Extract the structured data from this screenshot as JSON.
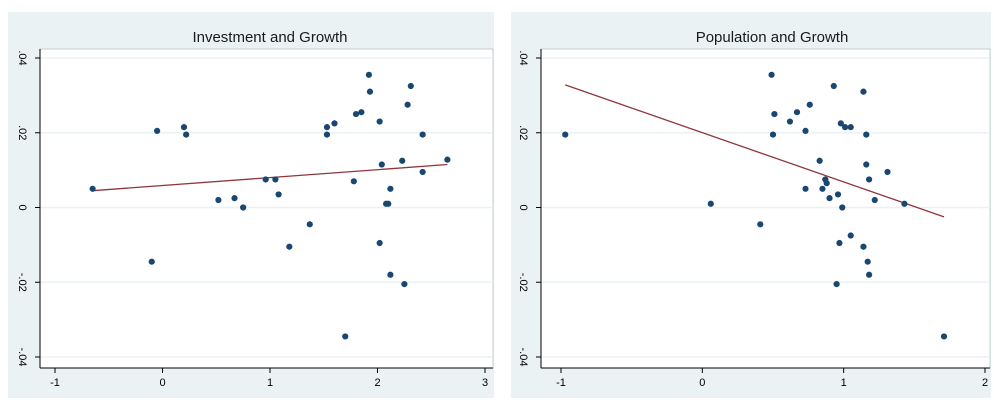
{
  "chart_data": [
    {
      "type": "scatter",
      "title": "Investment and Growth",
      "xlabel": "",
      "ylabel": "",
      "xlim": [
        -1.05,
        3.05
      ],
      "ylim": [
        -0.0415,
        0.0425
      ],
      "xticks": [
        -1,
        0,
        1,
        2,
        3
      ],
      "xtick_labels": [
        "-1",
        "0",
        "1",
        "2",
        "3"
      ],
      "yticks": [
        -0.04,
        -0.02,
        0,
        0.02,
        0.04
      ],
      "ytick_labels": [
        "-.04",
        "-.02",
        "0",
        ".02",
        ".04"
      ],
      "grid": true,
      "legend": "none",
      "colors": {
        "background": "#eaf2f3",
        "plot_bg": "#ffffff",
        "grid": "#eaf2f3",
        "points": "#1a476f",
        "fit_line": "#90353b",
        "title": "#1a1a1a"
      },
      "points": [
        [
          -0.65,
          0.005
        ],
        [
          -0.1,
          -0.0145
        ],
        [
          -0.05,
          0.0205
        ],
        [
          0.2,
          0.0215
        ],
        [
          0.22,
          0.0195
        ],
        [
          0.52,
          0.002
        ],
        [
          0.67,
          0.0025
        ],
        [
          0.75,
          0.0
        ],
        [
          0.96,
          0.0075
        ],
        [
          1.05,
          0.0075
        ],
        [
          1.08,
          0.0035
        ],
        [
          1.18,
          -0.0105
        ],
        [
          1.37,
          -0.0045
        ],
        [
          1.53,
          0.0215
        ],
        [
          1.53,
          0.0195
        ],
        [
          1.6,
          0.0225
        ],
        [
          1.7,
          -0.0345
        ],
        [
          1.78,
          0.007
        ],
        [
          1.8,
          0.025
        ],
        [
          1.85,
          0.0255
        ],
        [
          1.92,
          0.0355
        ],
        [
          1.93,
          0.031
        ],
        [
          2.02,
          0.023
        ],
        [
          2.02,
          -0.0095
        ],
        [
          2.04,
          0.0115
        ],
        [
          2.08,
          0.001
        ],
        [
          2.1,
          0.001
        ],
        [
          2.12,
          0.005
        ],
        [
          2.12,
          -0.018
        ],
        [
          2.23,
          0.0125
        ],
        [
          2.25,
          -0.0205
        ],
        [
          2.28,
          0.0275
        ],
        [
          2.31,
          0.0325
        ],
        [
          2.42,
          0.0095
        ],
        [
          2.42,
          0.0195
        ],
        [
          2.65,
          0.0128
        ]
      ],
      "fit_line": {
        "x": [
          -0.65,
          2.65
        ],
        "y": [
          0.0045,
          0.0115
        ]
      }
    },
    {
      "type": "scatter",
      "title": "Population and Growth",
      "xlabel": "",
      "ylabel": "",
      "xlim": [
        -1.05,
        2.05
      ],
      "ylim": [
        -0.0415,
        0.0425
      ],
      "xticks": [
        -1,
        0,
        1,
        2
      ],
      "xtick_labels": [
        "-1",
        "0",
        "1",
        "2"
      ],
      "yticks": [
        -0.04,
        -0.02,
        0,
        0.02,
        0.04
      ],
      "ytick_labels": [
        "-.04",
        "-.02",
        "0",
        ".02",
        ".04"
      ],
      "grid": true,
      "legend": "none",
      "colors": {
        "background": "#eaf2f3",
        "plot_bg": "#ffffff",
        "grid": "#eaf2f3",
        "points": "#1a476f",
        "fit_line": "#90353b",
        "title": "#1a1a1a"
      },
      "points": [
        [
          -0.97,
          0.0195
        ],
        [
          0.06,
          0.001
        ],
        [
          0.41,
          -0.0045
        ],
        [
          0.49,
          0.0355
        ],
        [
          0.5,
          0.0195
        ],
        [
          0.51,
          0.025
        ],
        [
          0.62,
          0.023
        ],
        [
          0.67,
          0.0255
        ],
        [
          0.73,
          0.0205
        ],
        [
          0.73,
          0.005
        ],
        [
          0.76,
          0.0275
        ],
        [
          0.83,
          0.0125
        ],
        [
          0.85,
          0.005
        ],
        [
          0.87,
          0.0075
        ],
        [
          0.88,
          0.0065
        ],
        [
          0.9,
          0.0025
        ],
        [
          0.93,
          0.0325
        ],
        [
          0.95,
          -0.0205
        ],
        [
          0.96,
          0.0035
        ],
        [
          0.97,
          -0.0095
        ],
        [
          0.98,
          0.0225
        ],
        [
          0.99,
          0.0
        ],
        [
          1.01,
          0.0215
        ],
        [
          1.05,
          0.0215
        ],
        [
          1.05,
          -0.0075
        ],
        [
          1.14,
          0.031
        ],
        [
          1.14,
          -0.0105
        ],
        [
          1.16,
          0.0195
        ],
        [
          1.16,
          0.0115
        ],
        [
          1.17,
          -0.0145
        ],
        [
          1.18,
          -0.018
        ],
        [
          1.18,
          0.0075
        ],
        [
          1.22,
          0.002
        ],
        [
          1.31,
          0.0095
        ],
        [
          1.43,
          0.001
        ],
        [
          1.71,
          -0.0345
        ]
      ],
      "fit_line": {
        "x": [
          -0.97,
          1.71
        ],
        "y": [
          0.0328,
          -0.0025
        ]
      }
    }
  ]
}
